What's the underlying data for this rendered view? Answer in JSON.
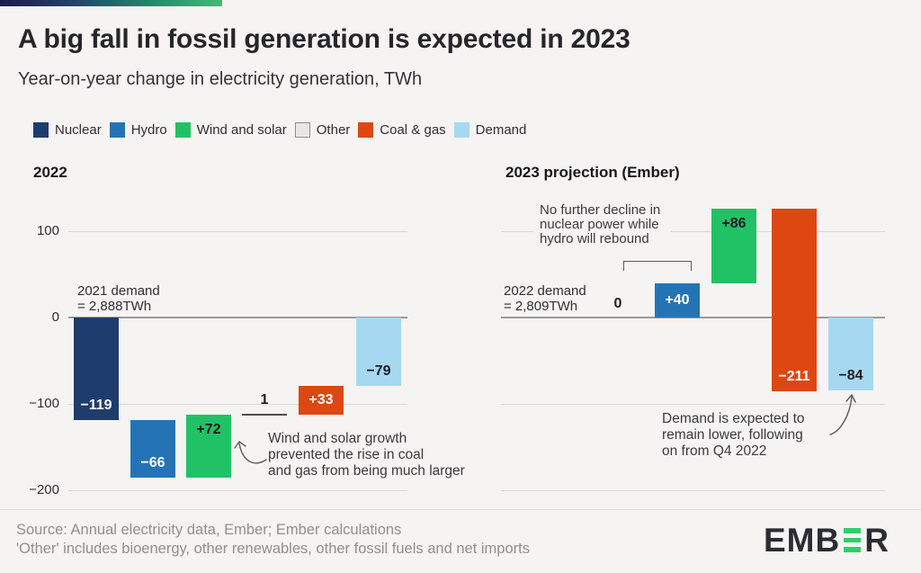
{
  "page": {
    "title": "A big fall in fossil generation is expected in 2023",
    "subtitle": "Year-on-year change in electricity generation, TWh"
  },
  "legend": {
    "position": "top",
    "items": [
      {
        "label": "Nuclear",
        "color": "#1e3c6d"
      },
      {
        "label": "Hydro",
        "color": "#2474b5"
      },
      {
        "label": "Wind and solar",
        "color": "#21c266"
      },
      {
        "label": "Other",
        "color": "#e9e8e6",
        "border": "#8d8d8d"
      },
      {
        "label": "Coal & gas",
        "color": "#dd4711"
      },
      {
        "label": "Demand",
        "color": "#a6d8f1"
      }
    ]
  },
  "chart_data": [
    {
      "type": "bar",
      "subtype": "waterfall",
      "title": "2022",
      "unit": "TWh",
      "ylim": [
        -200,
        100
      ],
      "grid": true,
      "yticks": [
        100,
        0,
        -100,
        -200
      ],
      "ytick_labels": [
        "100",
        "0",
        "−100",
        "−200"
      ],
      "categories": [
        "Nuclear",
        "Hydro",
        "Wind and solar",
        "Other",
        "Coal & gas",
        "Demand"
      ],
      "values": [
        -119,
        -66,
        72,
        1,
        33,
        -79
      ],
      "bar_labels": [
        "−119",
        "−66",
        "+72",
        "1",
        "+33",
        "−79"
      ],
      "display": [
        "bar",
        "bar",
        "bar",
        "line",
        "bar",
        "total-bar"
      ],
      "colors": [
        "#1e3c6d",
        "#2474b5",
        "#21c266",
        "#4e4e4e",
        "#dd4711",
        "#a6d8f1"
      ],
      "label_colors": [
        "#ffffff",
        "#ffffff",
        "#1d1d21",
        "#1d1d21",
        "#ffffff",
        "#1d1d21"
      ],
      "annotations": [
        {
          "id": "start-note",
          "text": "2021 demand\n= 2,888TWh"
        },
        {
          "id": "wind-note",
          "text": "Wind and solar growth\nprevented the rise in coal\nand gas from being much larger"
        }
      ]
    },
    {
      "type": "bar",
      "subtype": "waterfall",
      "title": "2023 projection (Ember)",
      "unit": "TWh",
      "ylim": [
        -200,
        100
      ],
      "grid": true,
      "yticks": [
        100,
        0,
        -100,
        -200
      ],
      "ytick_labels": [],
      "categories": [
        "Nuclear",
        "Hydro",
        "Wind and solar",
        "Coal & gas",
        "Demand"
      ],
      "values": [
        0,
        40,
        86,
        -211,
        -84
      ],
      "bar_labels": [
        "0",
        "+40",
        "+86",
        "−211",
        "−84"
      ],
      "display": [
        "text",
        "bar",
        "bar",
        "bar",
        "total-bar"
      ],
      "colors": [
        "#1d1d21",
        "#2474b5",
        "#21c266",
        "#dd4711",
        "#a6d8f1"
      ],
      "label_colors": [
        "#1d1d21",
        "#ffffff",
        "#1d1d21",
        "#ffffff",
        "#1d1d21"
      ],
      "annotations": [
        {
          "id": "nuclear-hydro-note",
          "text": "No further decline in\nnuclear power while\nhydro will rebound"
        },
        {
          "id": "start-note",
          "text": "2022 demand\n= 2,809TWh"
        },
        {
          "id": "demand-note",
          "text": "Demand is expected to\nremain lower, following\non from Q4 2022"
        }
      ]
    }
  ],
  "footer": {
    "source_line1": "Source: Annual electricity data, Ember; Ember calculations",
    "source_line2": "'Other' includes bioenergy, other renewables, other fossil fuels and net imports",
    "logo_prefix": "EMB",
    "logo_suffix": "R"
  }
}
